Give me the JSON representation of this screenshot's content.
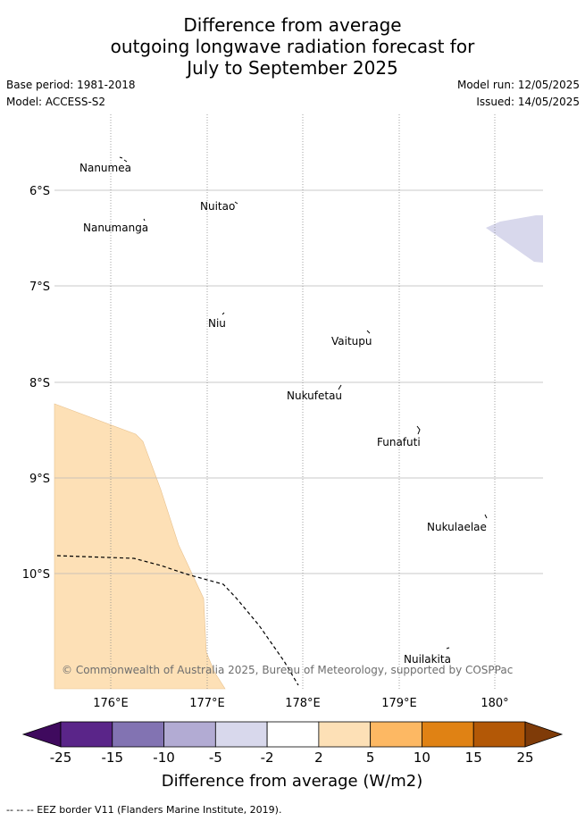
{
  "title": {
    "line1": "Difference from average",
    "line2": "outgoing longwave radiation forecast for",
    "line3": "July to September 2025"
  },
  "meta": {
    "base_period": "Base period: 1981-2018",
    "model": "Model: ACCESS-S2",
    "model_run": "Model run: 12/05/2025",
    "issued": "Issued: 14/05/2025"
  },
  "map": {
    "lat_labels": [
      "6°S",
      "7°S",
      "8°S",
      "9°S",
      "10°S"
    ],
    "lon_labels": [
      "176°E",
      "177°E",
      "178°E",
      "179°E",
      "180°"
    ],
    "islands": [
      "Nanumea",
      "Nuitao",
      "Nanumanga",
      "Niu",
      "Vaitupu",
      "Nukufetau",
      "Funafuti",
      "Nukulaelae",
      "Nuilakita"
    ],
    "copyright": "© Commonwealth of Australia 2025, Bureau of Meteorology, supported by COSPPac",
    "fill_colors": {
      "above_2_to_5": "#fde0b6",
      "below_minus2_to_minus5": "#d8d8ec"
    }
  },
  "colorbar": {
    "ticks": [
      "-25",
      "-15",
      "-10",
      "-5",
      "-2",
      "2",
      "5",
      "10",
      "15",
      "25"
    ],
    "colors": [
      "#3f0a5e",
      "#5a2589",
      "#8273b2",
      "#b2abd3",
      "#d8d8ec",
      "#ffffff",
      "#fde0b6",
      "#fdb863",
      "#e08214",
      "#b35806",
      "#7f3b08"
    ],
    "label": "Difference from average (W/m2)"
  },
  "footer": {
    "text": "--  --  -- EEZ border V11 (Flanders Marine Institute, 2019)."
  }
}
